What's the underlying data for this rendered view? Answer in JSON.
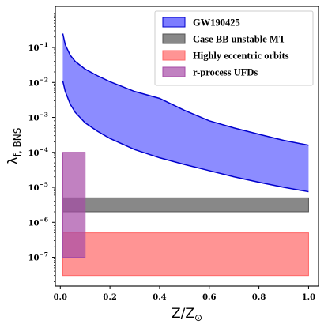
{
  "chart_data": {
    "type": "area",
    "xlabel": "Z/Z⊙",
    "ylabel": "λf, BNS",
    "xscale": "linear",
    "yscale": "log",
    "xlim": [
      -0.02,
      1.04
    ],
    "ylim": [
      1.5e-08,
      1.5
    ],
    "grid": false,
    "legend_position": "top-right",
    "x_ticks": [
      0.0,
      0.2,
      0.4,
      0.6,
      0.8,
      1.0
    ],
    "x_tick_labels": [
      "0.0",
      "0.2",
      "0.4",
      "0.6",
      "0.8",
      "1.0"
    ],
    "y_ticks": [
      1e-07,
      1e-06,
      1e-05,
      0.0001,
      0.001,
      0.01,
      0.1
    ],
    "y_tick_labels": [
      [
        "10",
        "−7"
      ],
      [
        "10",
        "−6"
      ],
      [
        "10",
        "−5"
      ],
      [
        "10",
        "−4"
      ],
      [
        "10",
        "−3"
      ],
      [
        "10",
        "−2"
      ],
      [
        "10",
        "−1"
      ]
    ],
    "series": [
      {
        "name": "GW190425",
        "kind": "band",
        "color": "#6666ff",
        "edge_color": "#0000cc",
        "x": [
          0.01,
          0.02,
          0.04,
          0.06,
          0.1,
          0.15,
          0.2,
          0.3,
          0.4,
          0.5,
          0.6,
          0.7,
          0.8,
          0.9,
          1.0
        ],
        "upper": [
          0.25,
          0.12,
          0.06,
          0.04,
          0.024,
          0.0155,
          0.0105,
          0.0055,
          0.0035,
          0.0016,
          0.0008,
          0.0005,
          0.00033,
          0.00022,
          0.00016
        ],
        "lower": [
          0.011,
          0.0055,
          0.0024,
          0.0014,
          0.0007,
          0.0004,
          0.00025,
          0.00012,
          7e-05,
          4.5e-05,
          3e-05,
          2e-05,
          1.4e-05,
          1e-05,
          7.5e-06
        ]
      },
      {
        "name": "Case BB unstable MT",
        "kind": "rect",
        "color": "#555555",
        "x": [
          0.01,
          1.0
        ],
        "lower": 2e-06,
        "upper": 5e-06
      },
      {
        "name": "Highly eccentric orbits",
        "kind": "rect",
        "color": "#ff6666",
        "x": [
          0.01,
          1.0
        ],
        "lower": 3e-08,
        "upper": 5e-07
      },
      {
        "name": "r-process UFDs",
        "kind": "rect",
        "color": "#a64ca6",
        "x": [
          0.01,
          0.1
        ],
        "lower": 1e-07,
        "upper": 0.0001
      }
    ]
  }
}
